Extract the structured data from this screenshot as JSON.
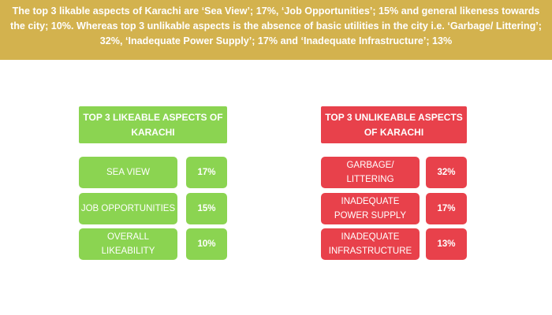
{
  "banner": {
    "line1": "The top 3 likable aspects of Karachi are ‘Sea View’; 17%, ‘Job Opportunities’; 15% and general likeness towards",
    "line2": "the city; 10%. Whereas top 3 unlikable aspects is the absence of basic utilities in the city i.e. ‘Garbage/ Littering’;",
    "line3": "32%, ‘Inadequate Power Supply’; 17% and ‘Inadequate Infrastructure’; 13%"
  },
  "likeable": {
    "title_line1": "TOP 3 LIKEABLE ASPECTS OF",
    "title_line2": "KARACHI",
    "color": "#8bd451",
    "items": [
      {
        "label_line1": "SEA VIEW",
        "label_line2": "",
        "value": "17%"
      },
      {
        "label_line1": "JOB OPPORTUNITIES",
        "label_line2": "",
        "value": "15%"
      },
      {
        "label_line1": "OVERALL",
        "label_line2": "LIKEABILITY",
        "value": "10%"
      }
    ]
  },
  "unlikeable": {
    "title_line1": "TOP 3 UNLIKEABLE ASPECTS",
    "title_line2": "OF KARACHI",
    "color": "#e8414b",
    "items": [
      {
        "label_line1": "GARBAGE/",
        "label_line2": "LITTERING",
        "value": "32%"
      },
      {
        "label_line1": "INADEQUATE",
        "label_line2": "POWER SUPPLY",
        "value": "17%"
      },
      {
        "label_line1": "INADEQUATE",
        "label_line2": "INFRASTRUCTURE",
        "value": "13%"
      }
    ]
  }
}
